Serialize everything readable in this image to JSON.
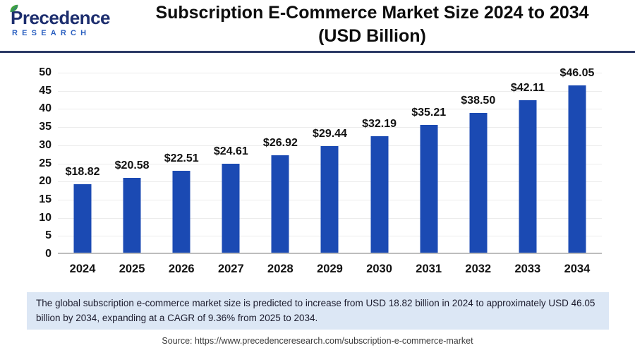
{
  "header": {
    "logo": {
      "brand_line1": "Precedence",
      "brand_line2": "RESEARCH"
    },
    "title_line1": "Subscription E-Commerce Market Size 2024 to 2034",
    "title_line2": "(USD Billion)"
  },
  "chart_data": {
    "type": "bar",
    "title": "Subscription E-Commerce Market Size 2024 to 2034 (USD Billion)",
    "unit": "USD Billion",
    "categories": [
      "2024",
      "2025",
      "2026",
      "2027",
      "2028",
      "2029",
      "2030",
      "2031",
      "2032",
      "2033",
      "2034"
    ],
    "values": [
      18.82,
      20.58,
      22.51,
      24.61,
      26.92,
      29.44,
      32.19,
      35.21,
      38.5,
      42.11,
      46.05
    ],
    "value_labels": [
      "$18.82",
      "$20.58",
      "$22.51",
      "$24.61",
      "$26.92",
      "$29.44",
      "$32.19",
      "$35.21",
      "$38.50",
      "$42.11",
      "$46.05"
    ],
    "xlabel": "",
    "ylabel": "",
    "ylim": [
      0,
      50
    ],
    "ytick_step": 5,
    "grid": true,
    "legend": "none",
    "bar_color": "#1b4ab3"
  },
  "note": {
    "text": "The global subscription e-commerce market size is predicted to increase from USD 18.82 billion in 2024 to approximately USD 46.05 billion by 2034, expanding at a CAGR of 9.36% from 2025 to 2034."
  },
  "source": {
    "text": "Source: https://www.precedenceresearch.com/subscription-e-commerce-market"
  },
  "colors": {
    "bar": "#1b4ab3",
    "header_rule": "#2c3a66",
    "note_background": "#dce7f5",
    "logo_navy": "#1d2e6e",
    "logo_blue": "#2a5fc0",
    "leaf_green": "#3fa33c",
    "gridline": "#ececec",
    "axis_line": "#bdbdbd"
  }
}
